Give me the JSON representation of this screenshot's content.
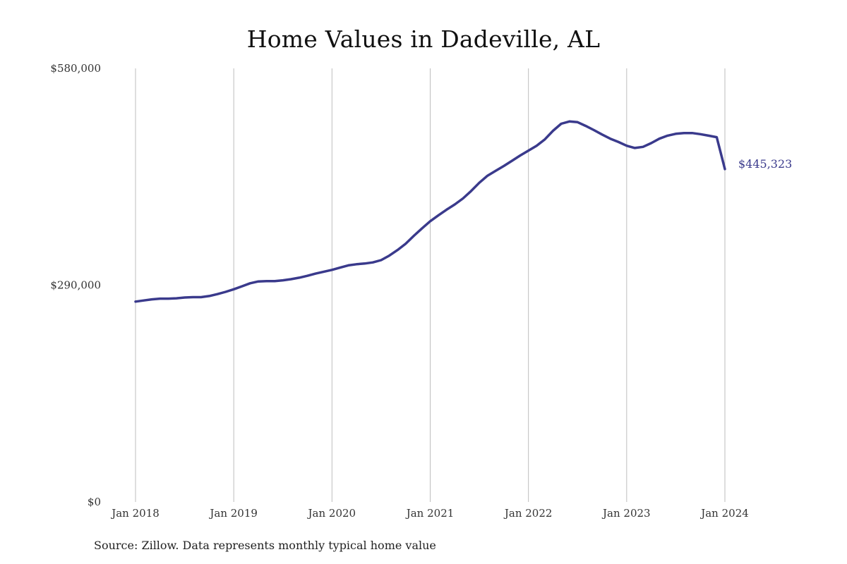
{
  "chart_data": {
    "type": "line",
    "title": "Home Values in Dadeville, AL",
    "xlabel": "",
    "ylabel": "",
    "x_start": "2018-01",
    "x_ticks": [
      "Jan 2018",
      "Jan 2019",
      "Jan 2020",
      "Jan 2021",
      "Jan 2022",
      "Jan 2023",
      "Jan 2024"
    ],
    "y_ticks": [
      "$0",
      "$290,000",
      "$580,000"
    ],
    "y_tick_values": [
      0,
      290000,
      580000
    ],
    "ylim": [
      0,
      580000
    ],
    "grid": "vertical",
    "series": [
      {
        "name": "",
        "color": "#3a3a8c",
        "end_label": "$445,323",
        "points": [
          [
            "2018-01",
            268000
          ],
          [
            "2018-02",
            269500
          ],
          [
            "2018-03",
            271000
          ],
          [
            "2018-04",
            272000
          ],
          [
            "2018-05",
            272000
          ],
          [
            "2018-06",
            272500
          ],
          [
            "2018-07",
            273500
          ],
          [
            "2018-08",
            274000
          ],
          [
            "2018-09",
            274000
          ],
          [
            "2018-10",
            275500
          ],
          [
            "2018-11",
            278000
          ],
          [
            "2018-12",
            281000
          ],
          [
            "2019-01",
            284500
          ],
          [
            "2019-02",
            288500
          ],
          [
            "2019-03",
            292500
          ],
          [
            "2019-04",
            295000
          ],
          [
            "2019-05",
            295500
          ],
          [
            "2019-06",
            295500
          ],
          [
            "2019-07",
            296500
          ],
          [
            "2019-08",
            298000
          ],
          [
            "2019-09",
            300000
          ],
          [
            "2019-10",
            302500
          ],
          [
            "2019-11",
            305500
          ],
          [
            "2019-12",
            308000
          ],
          [
            "2020-01",
            310500
          ],
          [
            "2020-02",
            313500
          ],
          [
            "2020-03",
            316500
          ],
          [
            "2020-04",
            318000
          ],
          [
            "2020-05",
            319000
          ],
          [
            "2020-06",
            320500
          ],
          [
            "2020-07",
            323500
          ],
          [
            "2020-08",
            329500
          ],
          [
            "2020-09",
            337000
          ],
          [
            "2020-10",
            345500
          ],
          [
            "2020-11",
            356000
          ],
          [
            "2020-12",
            366000
          ],
          [
            "2021-01",
            375500
          ],
          [
            "2021-02",
            383500
          ],
          [
            "2021-03",
            391000
          ],
          [
            "2021-04",
            398000
          ],
          [
            "2021-05",
            406000
          ],
          [
            "2021-06",
            416000
          ],
          [
            "2021-07",
            427000
          ],
          [
            "2021-08",
            436500
          ],
          [
            "2021-09",
            443000
          ],
          [
            "2021-10",
            449500
          ],
          [
            "2021-11",
            456500
          ],
          [
            "2021-12",
            463500
          ],
          [
            "2022-01",
            470000
          ],
          [
            "2022-02",
            476500
          ],
          [
            "2022-03",
            485000
          ],
          [
            "2022-04",
            496500
          ],
          [
            "2022-05",
            506000
          ],
          [
            "2022-06",
            509000
          ],
          [
            "2022-07",
            508000
          ],
          [
            "2022-08",
            503000
          ],
          [
            "2022-09",
            497500
          ],
          [
            "2022-10",
            491500
          ],
          [
            "2022-11",
            486000
          ],
          [
            "2022-12",
            481500
          ],
          [
            "2023-01",
            476500
          ],
          [
            "2023-02",
            473500
          ],
          [
            "2023-03",
            475000
          ],
          [
            "2023-04",
            480000
          ],
          [
            "2023-05",
            486000
          ],
          [
            "2023-06",
            490000
          ],
          [
            "2023-07",
            492500
          ],
          [
            "2023-08",
            493500
          ],
          [
            "2023-09",
            493500
          ],
          [
            "2023-10",
            492000
          ],
          [
            "2023-11",
            490000
          ],
          [
            "2023-12",
            488000
          ],
          [
            "2024-01",
            445323
          ]
        ]
      }
    ]
  },
  "source": "Source: Zillow. Data represents monthly typical home value"
}
